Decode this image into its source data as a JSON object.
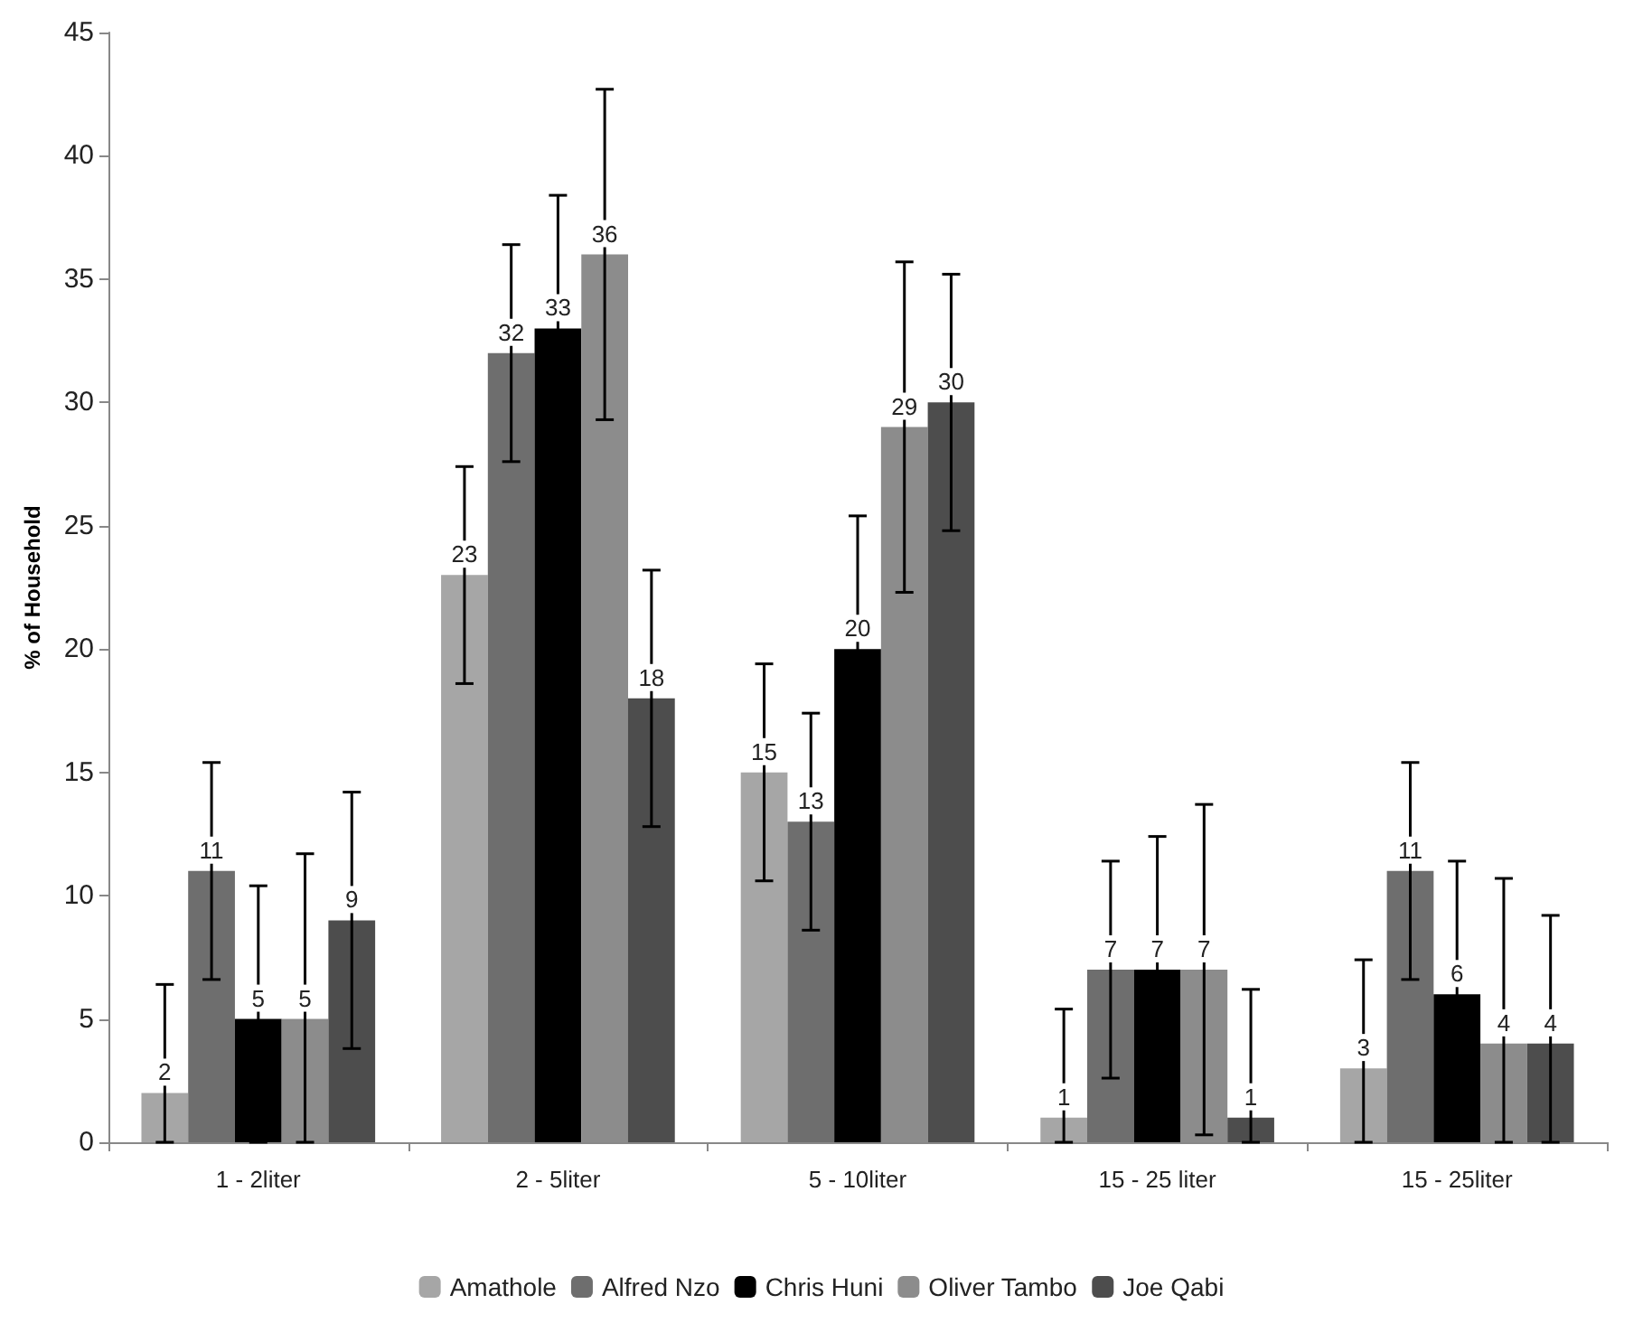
{
  "chart_data": {
    "type": "bar",
    "ylabel": "% of Household",
    "categories": [
      "1 - 2liter",
      "2 - 5liter",
      "5 - 10liter",
      "15 - 25 liter",
      "15 - 25liter"
    ],
    "series": [
      {
        "name": "Amathole",
        "color": "#a6a6a6",
        "values": [
          2,
          23,
          15,
          1,
          3
        ],
        "errors": [
          [
            0,
            6.4
          ],
          4.4,
          4.4,
          [
            0,
            5.4
          ],
          [
            0,
            7.4
          ]
        ]
      },
      {
        "name": "Alfred Nzo",
        "color": "#6e6e6e",
        "values": [
          11,
          32,
          13,
          7,
          11
        ],
        "errors": [
          4.4,
          4.4,
          4.4,
          4.4,
          4.4
        ]
      },
      {
        "name": "Chris Huni",
        "color": "#000000",
        "values": [
          5,
          33,
          20,
          7,
          6
        ],
        "errors": [
          [
            0,
            10.4
          ],
          5.4,
          5.4,
          5.4,
          5.4
        ]
      },
      {
        "name": "Oliver Tambo",
        "color": "#8c8c8c",
        "values": [
          5,
          36,
          29,
          7,
          4
        ],
        "errors": [
          [
            0,
            11.7
          ],
          6.7,
          6.7,
          6.7,
          [
            0,
            10.7
          ]
        ]
      },
      {
        "name": "Joe Qabi",
        "color": "#4d4d4d",
        "values": [
          9,
          18,
          30,
          1,
          4
        ],
        "errors": [
          5.2,
          5.2,
          5.2,
          [
            0,
            6.2
          ],
          [
            0,
            9.2
          ]
        ]
      }
    ],
    "ylim": [
      0,
      45
    ],
    "yticks": [
      0,
      5,
      10,
      15,
      20,
      25,
      30,
      35,
      40,
      45
    ],
    "grid": false,
    "legend": "bottom",
    "data_labels": true
  }
}
